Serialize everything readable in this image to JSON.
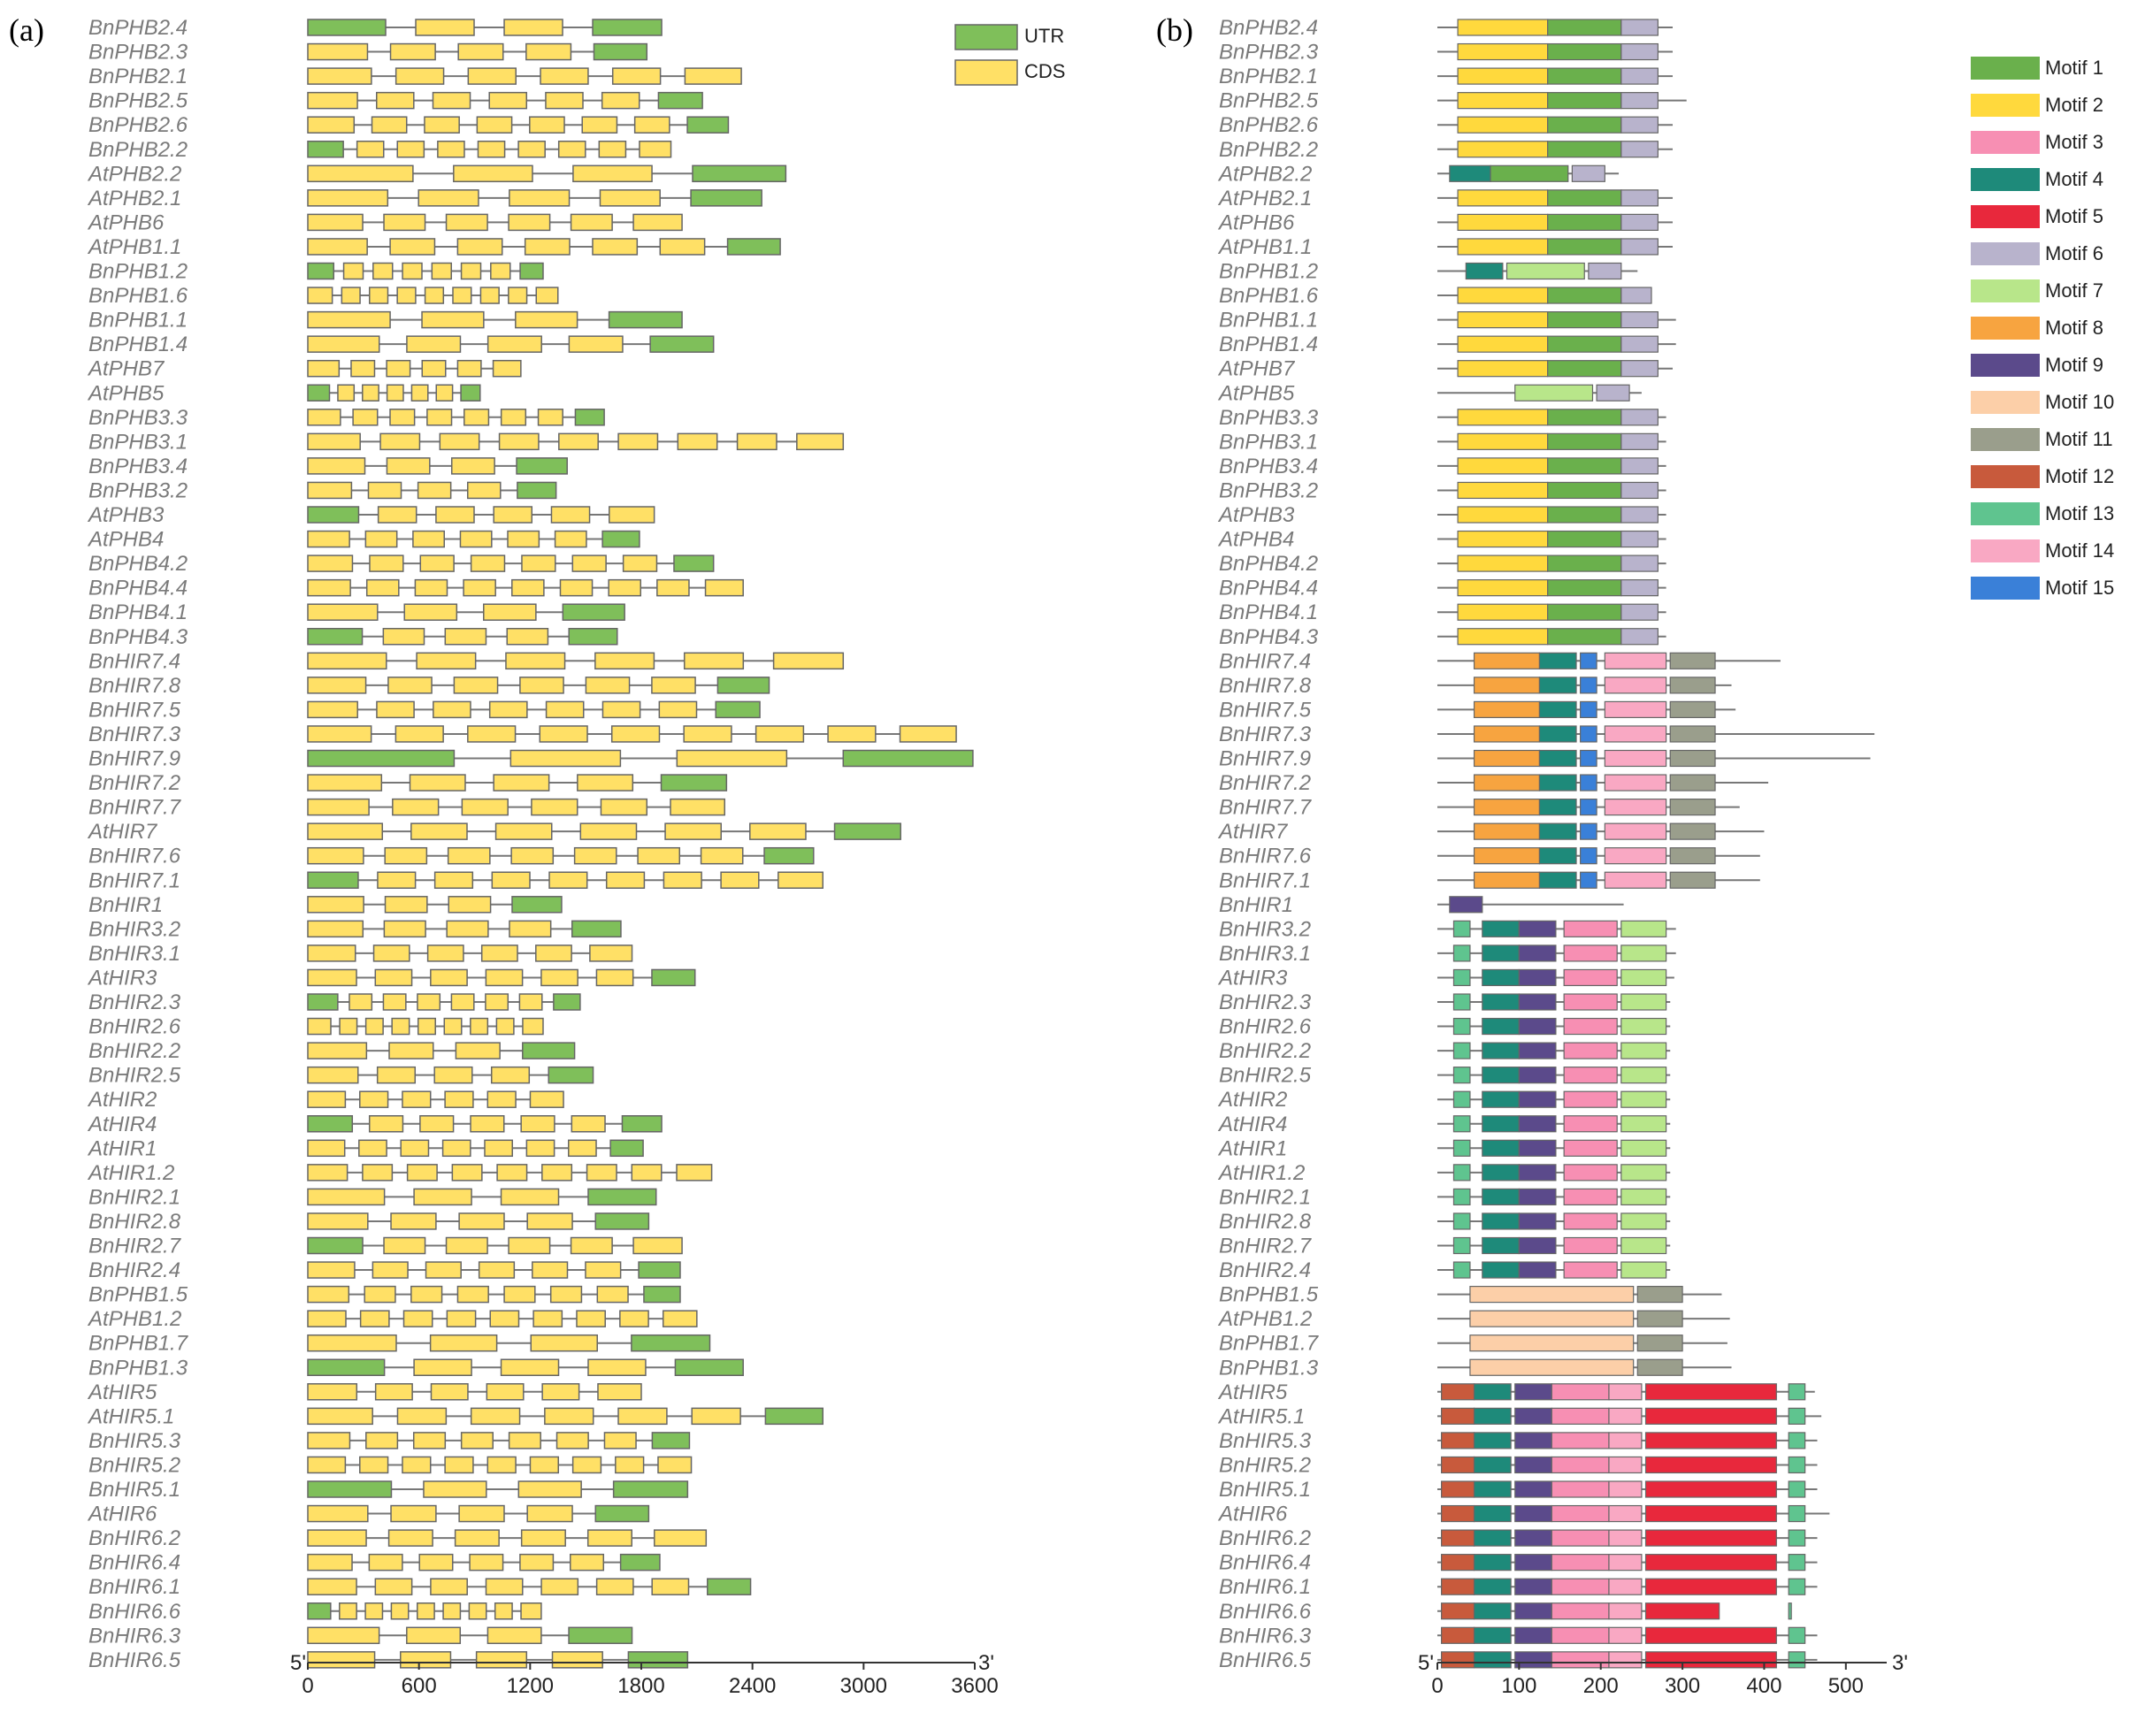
{
  "panel_a": {
    "label": "(a)",
    "axis": {
      "min": 0,
      "max": 3600,
      "ticks": [
        0,
        600,
        1200,
        1800,
        2400,
        3000,
        3600
      ],
      "start_label": "5'",
      "end_label": "3'"
    },
    "legend": [
      {
        "name": "UTR",
        "color": "#7fbf5a"
      },
      {
        "name": "CDS",
        "color": "#ffe066"
      }
    ],
    "genes": [
      "BnPHB2.4",
      "BnPHB2.3",
      "BnPHB2.1",
      "BnPHB2.5",
      "BnPHB2.6",
      "BnPHB2.2",
      "AtPHB2.2",
      "AtPHB2.1",
      "AtPHB6",
      "AtPHB1.1",
      "BnPHB1.2",
      "BnPHB1.6",
      "BnPHB1.1",
      "BnPHB1.4",
      "AtPHB7",
      "AtPHB5",
      "BnPHB3.3",
      "BnPHB3.1",
      "BnPHB3.4",
      "BnPHB3.2",
      "AtPHB3",
      "AtPHB4",
      "BnPHB4.2",
      "BnPHB4.4",
      "BnPHB4.1",
      "BnPHB4.3",
      "BnHIR7.4",
      "BnHIR7.8",
      "BnHIR7.5",
      "BnHIR7.3",
      "BnHIR7.9",
      "BnHIR7.2",
      "BnHIR7.7",
      "AtHIR7",
      "BnHIR7.6",
      "BnHIR7.1",
      "BnHIR1",
      "BnHIR3.2",
      "BnHIR3.1",
      "AtHIR3",
      "BnHIR2.3",
      "BnHIR2.6",
      "BnHIR2.2",
      "BnHIR2.5",
      "AtHIR2",
      "AtHIR4",
      "AtHIR1",
      "AtHIR1.2",
      "BnHIR2.1",
      "BnHIR2.8",
      "BnHIR2.7",
      "BnHIR2.4",
      "BnPHB1.5",
      "AtPHB1.2",
      "BnPHB1.7",
      "BnPHB1.3",
      "AtHIR5",
      "AtHIR5.1",
      "BnHIR5.3",
      "BnHIR5.2",
      "BnHIR5.1",
      "AtHIR6",
      "BnHIR6.2",
      "BnHIR6.4",
      "BnHIR6.1",
      "BnHIR6.6",
      "BnHIR6.3",
      "BnHIR6.5"
    ],
    "gene_lengths": [
      1910,
      1830,
      2340,
      2130,
      2270,
      1960,
      2580,
      2450,
      2020,
      2550,
      1270,
      1350,
      2020,
      2190,
      1150,
      930,
      1600,
      2890,
      1400,
      1340,
      1870,
      1790,
      2190,
      2350,
      1710,
      1670,
      2890,
      2490,
      2440,
      3500,
      3590,
      2260,
      2250,
      3200,
      2730,
      2780,
      1370,
      1690,
      1750,
      2090,
      1470,
      1270,
      1440,
      1540,
      1380,
      1910,
      1810,
      2180,
      1880,
      1840,
      2020,
      2010,
      2010,
      2100,
      2170,
      2350,
      1800,
      2780,
      2060,
      2070,
      2050,
      1840,
      2150,
      1900,
      2390,
      1260,
      1750,
      2050
    ]
  },
  "panel_b": {
    "label": "(b)",
    "axis": {
      "min": 0,
      "max": 550,
      "ticks": [
        0,
        100,
        200,
        300,
        400,
        500
      ],
      "start_label": "5'",
      "end_label": "3'"
    },
    "legend": [
      {
        "name": "Motif 1",
        "color": "#6ab04c"
      },
      {
        "name": "Motif 2",
        "color": "#ffd93d"
      },
      {
        "name": "Motif 3",
        "color": "#f78fb3"
      },
      {
        "name": "Motif 4",
        "color": "#1e8a7a"
      },
      {
        "name": "Motif 5",
        "color": "#e8283c"
      },
      {
        "name": "Motif 6",
        "color": "#b8b3cc"
      },
      {
        "name": "Motif 7",
        "color": "#b8e68a"
      },
      {
        "name": "Motif 8",
        "color": "#f7a440"
      },
      {
        "name": "Motif 9",
        "color": "#5b4a8b"
      },
      {
        "name": "Motif 10",
        "color": "#fccfa8"
      },
      {
        "name": "Motif 11",
        "color": "#9a9e8c"
      },
      {
        "name": "Motif 12",
        "color": "#c85a3c"
      },
      {
        "name": "Motif 13",
        "color": "#5fc48f"
      },
      {
        "name": "Motif 14",
        "color": "#f9a8c3"
      },
      {
        "name": "Motif 15",
        "color": "#3a80d8"
      }
    ],
    "genes": [
      "BnPHB2.4",
      "BnPHB2.3",
      "BnPHB2.1",
      "BnPHB2.5",
      "BnPHB2.6",
      "BnPHB2.2",
      "AtPHB2.2",
      "AtPHB2.1",
      "AtPHB6",
      "AtPHB1.1",
      "BnPHB1.2",
      "BnPHB1.6",
      "BnPHB1.1",
      "BnPHB1.4",
      "AtPHB7",
      "AtPHB5",
      "BnPHB3.3",
      "BnPHB3.1",
      "BnPHB3.4",
      "BnPHB3.2",
      "AtPHB3",
      "AtPHB4",
      "BnPHB4.2",
      "BnPHB4.4",
      "BnPHB4.1",
      "BnPHB4.3",
      "BnHIR7.4",
      "BnHIR7.8",
      "BnHIR7.5",
      "BnHIR7.3",
      "BnHIR7.9",
      "BnHIR7.2",
      "BnHIR7.7",
      "AtHIR7",
      "BnHIR7.6",
      "BnHIR7.1",
      "BnHIR1",
      "BnHIR3.2",
      "BnHIR3.1",
      "AtHIR3",
      "BnHIR2.3",
      "BnHIR2.6",
      "BnHIR2.2",
      "BnHIR2.5",
      "AtHIR2",
      "AtHIR4",
      "AtHIR1",
      "AtHIR1.2",
      "BnHIR2.1",
      "BnHIR2.8",
      "BnHIR2.7",
      "BnHIR2.4",
      "BnPHB1.5",
      "AtPHB1.2",
      "BnPHB1.7",
      "BnPHB1.3",
      "AtHIR5",
      "AtHIR5.1",
      "BnHIR5.3",
      "BnHIR5.2",
      "BnHIR5.1",
      "AtHIR6",
      "BnHIR6.2",
      "BnHIR6.4",
      "BnHIR6.1",
      "BnHIR6.6",
      "BnHIR6.3",
      "BnHIR6.5"
    ],
    "protein_lengths": [
      288,
      288,
      288,
      305,
      288,
      288,
      222,
      288,
      288,
      288,
      245,
      262,
      292,
      292,
      288,
      250,
      280,
      280,
      280,
      280,
      280,
      280,
      280,
      280,
      280,
      280,
      420,
      360,
      365,
      535,
      530,
      405,
      370,
      400,
      395,
      395,
      228,
      292,
      292,
      290,
      285,
      285,
      285,
      285,
      285,
      285,
      285,
      285,
      285,
      285,
      285,
      285,
      348,
      358,
      355,
      360,
      462,
      470,
      465,
      465,
      465,
      480,
      465,
      465,
      465,
      345,
      465,
      465
    ]
  }
}
